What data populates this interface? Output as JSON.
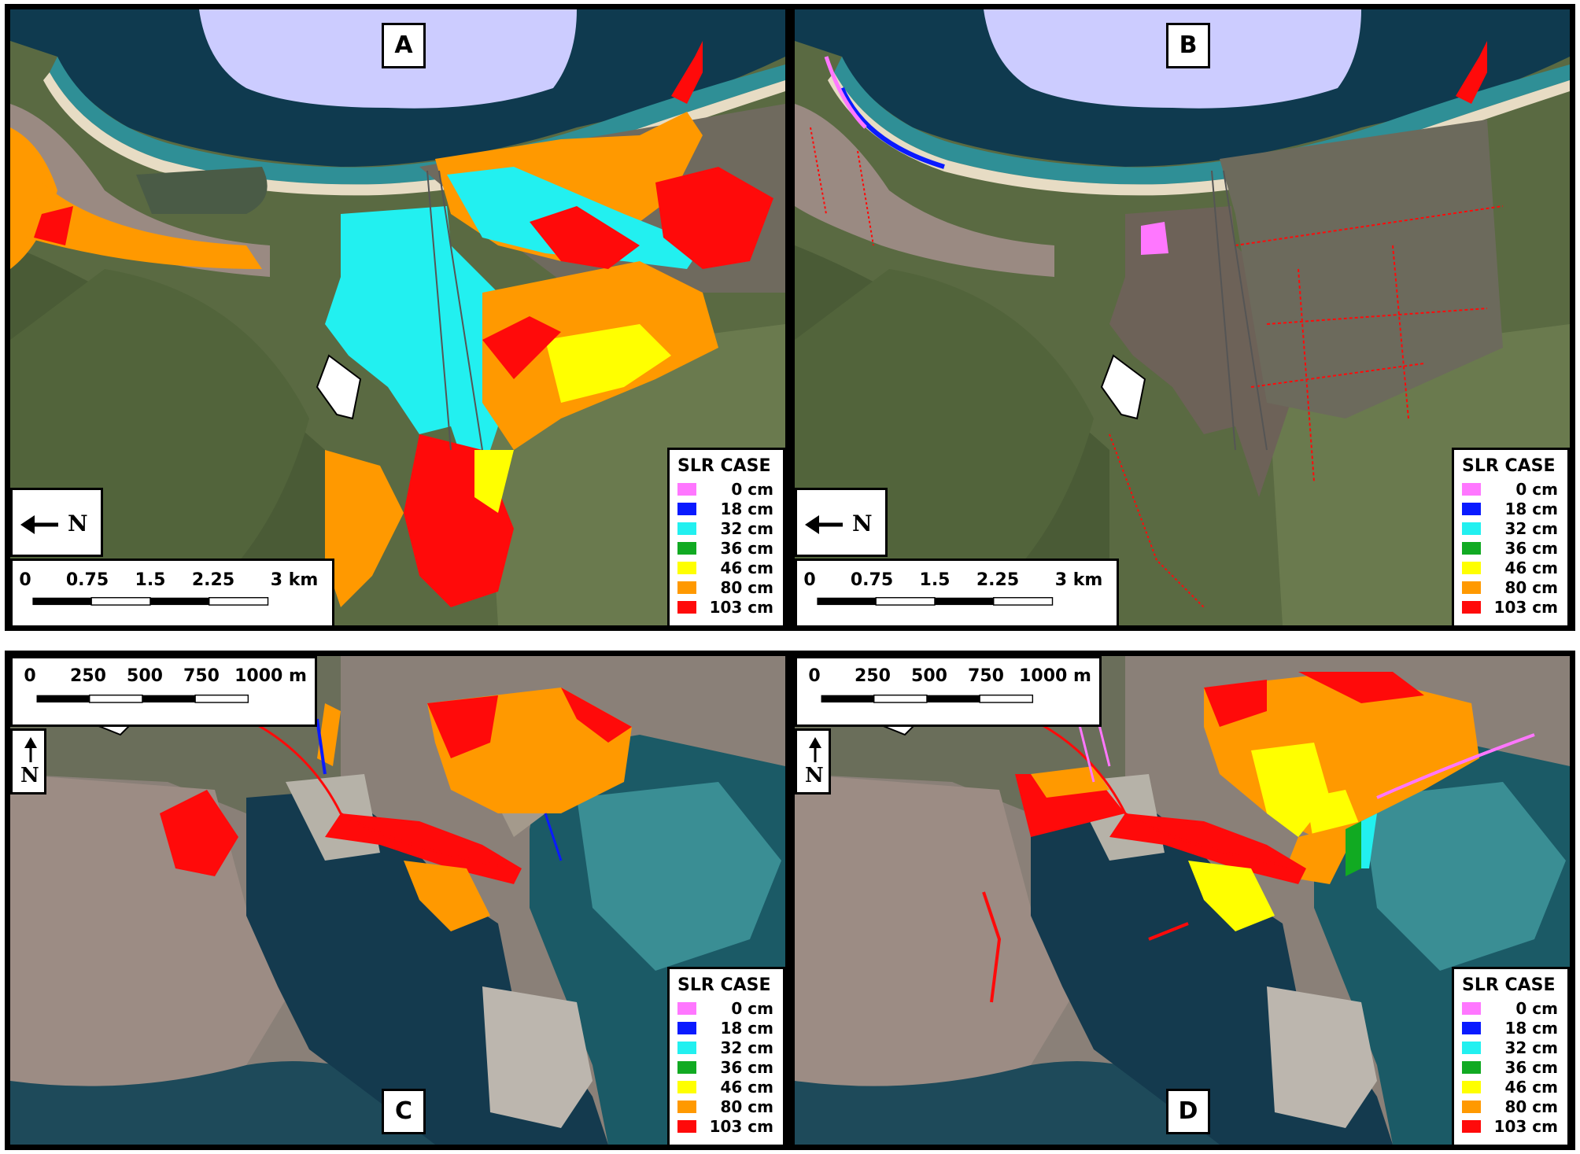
{
  "panels": {
    "a": {
      "letter": "A"
    },
    "b": {
      "letter": "B"
    },
    "c": {
      "letter": "C"
    },
    "d": {
      "letter": "D"
    }
  },
  "legend": {
    "title": "SLR CASE",
    "items": [
      {
        "label": "0 cm",
        "color": "#ff77ff"
      },
      {
        "label": "18 cm",
        "color": "#0a1aff"
      },
      {
        "label": "32 cm",
        "color": "#22f0f0"
      },
      {
        "label": "36 cm",
        "color": "#11aa22"
      },
      {
        "label": "46 cm",
        "color": "#ffff00"
      },
      {
        "label": "80 cm",
        "color": "#ff9900"
      },
      {
        "label": "103 cm",
        "color": "#ff0a0a"
      }
    ]
  },
  "scale_km": {
    "ticks": [
      "0",
      "0.75",
      "1.5",
      "2.25",
      "3 km"
    ]
  },
  "scale_m": {
    "ticks": [
      "0",
      "250",
      "500",
      "750",
      "1000 m"
    ]
  },
  "north": {
    "label": "N"
  },
  "colors": {
    "sea_deep": "#0f3a4f",
    "sea_shallow": "#2f8f96",
    "beach": "#e7dcc4",
    "land": "#5d6b45",
    "urban": "#9a8a82",
    "lavender": "#ccccff"
  }
}
